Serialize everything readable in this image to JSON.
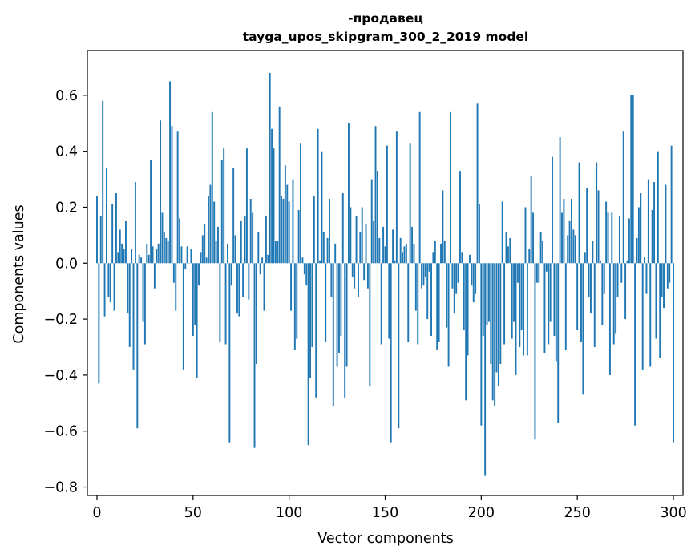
{
  "chart_data": {
    "type": "bar",
    "title": "-продавец",
    "subtitle": "tayga_upos_skipgram_300_2_2019 model",
    "xlabel": "Vector components",
    "ylabel": "Components values",
    "xlim": [
      -5,
      305
    ],
    "ylim": [
      -0.83,
      0.76
    ],
    "xticks": [
      0,
      50,
      100,
      150,
      200,
      250,
      300
    ],
    "xtick_labels": [
      "0",
      "50",
      "100",
      "150",
      "200",
      "250",
      "300"
    ],
    "yticks": [
      -0.8,
      -0.6,
      -0.4,
      -0.2,
      0.0,
      0.2,
      0.4,
      0.6
    ],
    "ytick_labels": [
      "−0.8",
      "−0.6",
      "−0.4",
      "−0.2",
      "0.0",
      "0.2",
      "0.4",
      "0.6"
    ],
    "grid": false,
    "bar_color": "#1f77b4",
    "series": [
      {
        "values": [
          0.24,
          -0.43,
          0.17,
          0.58,
          -0.19,
          0.34,
          -0.12,
          -0.14,
          0.21,
          -0.17,
          0.25,
          0.04,
          0.12,
          0.07,
          0.05,
          0.15,
          -0.18,
          -0.3,
          0.05,
          -0.38,
          0.29,
          -0.59,
          0.03,
          0.02,
          -0.21,
          -0.29,
          0.07,
          0.03,
          0.37,
          0.06,
          -0.09,
          0.05,
          0.07,
          0.51,
          0.18,
          0.11,
          0.09,
          0.08,
          0.65,
          0.49,
          -0.07,
          -0.17,
          0.47,
          0.16,
          0.06,
          -0.38,
          -0.02,
          0.06,
          0.0,
          0.05,
          -0.26,
          -0.22,
          -0.41,
          -0.08,
          0.04,
          0.1,
          0.14,
          0.02,
          0.24,
          0.28,
          0.54,
          0.22,
          0.08,
          0.13,
          -0.28,
          0.37,
          0.41,
          -0.29,
          0.07,
          -0.64,
          -0.08,
          0.34,
          0.1,
          -0.18,
          -0.19,
          0.15,
          -0.12,
          0.17,
          0.41,
          -0.13,
          0.23,
          0.18,
          -0.66,
          -0.36,
          0.11,
          -0.04,
          0.02,
          -0.17,
          0.17,
          0.03,
          0.68,
          0.48,
          0.41,
          0.08,
          0.08,
          0.56,
          0.24,
          0.23,
          0.35,
          0.28,
          0.22,
          -0.17,
          0.3,
          -0.31,
          -0.27,
          0.19,
          0.43,
          0.02,
          -0.04,
          -0.08,
          -0.65,
          -0.41,
          -0.3,
          0.24,
          -0.48,
          0.48,
          0.01,
          0.4,
          0.11,
          -0.28,
          0.09,
          0.23,
          -0.12,
          -0.51,
          0.07,
          -0.37,
          -0.32,
          -0.26,
          0.25,
          -0.48,
          -0.37,
          0.5,
          0.2,
          -0.05,
          -0.09,
          0.17,
          -0.12,
          0.11,
          0.2,
          -0.06,
          0.14,
          -0.09,
          -0.44,
          0.3,
          0.15,
          0.49,
          0.33,
          0.09,
          -0.29,
          0.13,
          0.06,
          0.42,
          -0.27,
          -0.64,
          0.12,
          0.01,
          0.47,
          -0.59,
          0.09,
          0.04,
          0.06,
          0.07,
          -0.28,
          0.43,
          0.13,
          0.07,
          -0.17,
          -0.29,
          0.54,
          -0.09,
          -0.08,
          -0.05,
          -0.2,
          -0.03,
          -0.26,
          0.04,
          0.08,
          -0.31,
          -0.28,
          0.07,
          0.26,
          0.08,
          -0.23,
          -0.37,
          0.54,
          -0.09,
          -0.18,
          -0.11,
          -0.07,
          0.33,
          0.04,
          -0.24,
          -0.49,
          -0.33,
          0.03,
          -0.08,
          -0.14,
          -0.11,
          0.57,
          0.21,
          -0.58,
          -0.26,
          -0.76,
          -0.22,
          -0.21,
          -0.36,
          -0.49,
          -0.51,
          -0.39,
          -0.44,
          -0.36,
          0.22,
          -0.29,
          0.11,
          0.06,
          0.09,
          -0.27,
          -0.21,
          -0.4,
          -0.07,
          -0.3,
          -0.24,
          -0.33,
          0.2,
          -0.33,
          0.05,
          0.31,
          0.18,
          -0.63,
          -0.07,
          -0.07,
          0.11,
          0.08,
          -0.32,
          -0.03,
          -0.29,
          -0.21,
          0.38,
          -0.26,
          -0.35,
          -0.57,
          0.45,
          0.18,
          0.23,
          -0.31,
          0.1,
          0.15,
          0.23,
          0.12,
          0.1,
          -0.24,
          0.36,
          -0.28,
          -0.47,
          0.04,
          0.27,
          -0.12,
          -0.18,
          0.08,
          -0.3,
          0.36,
          0.26,
          0.01,
          -0.22,
          -0.11,
          0.22,
          0.18,
          -0.4,
          0.18,
          -0.29,
          -0.25,
          -0.12,
          0.17,
          -0.07,
          0.47,
          -0.2,
          0.01,
          0.16,
          0.6,
          0.6,
          -0.58,
          0.09,
          0.2,
          0.25,
          -0.38,
          0.02,
          -0.11,
          0.3,
          -0.37,
          0.19,
          0.29,
          -0.27,
          0.4,
          -0.34,
          -0.12,
          -0.16,
          0.28,
          -0.09,
          -0.07,
          0.42,
          -0.64
        ]
      }
    ]
  }
}
